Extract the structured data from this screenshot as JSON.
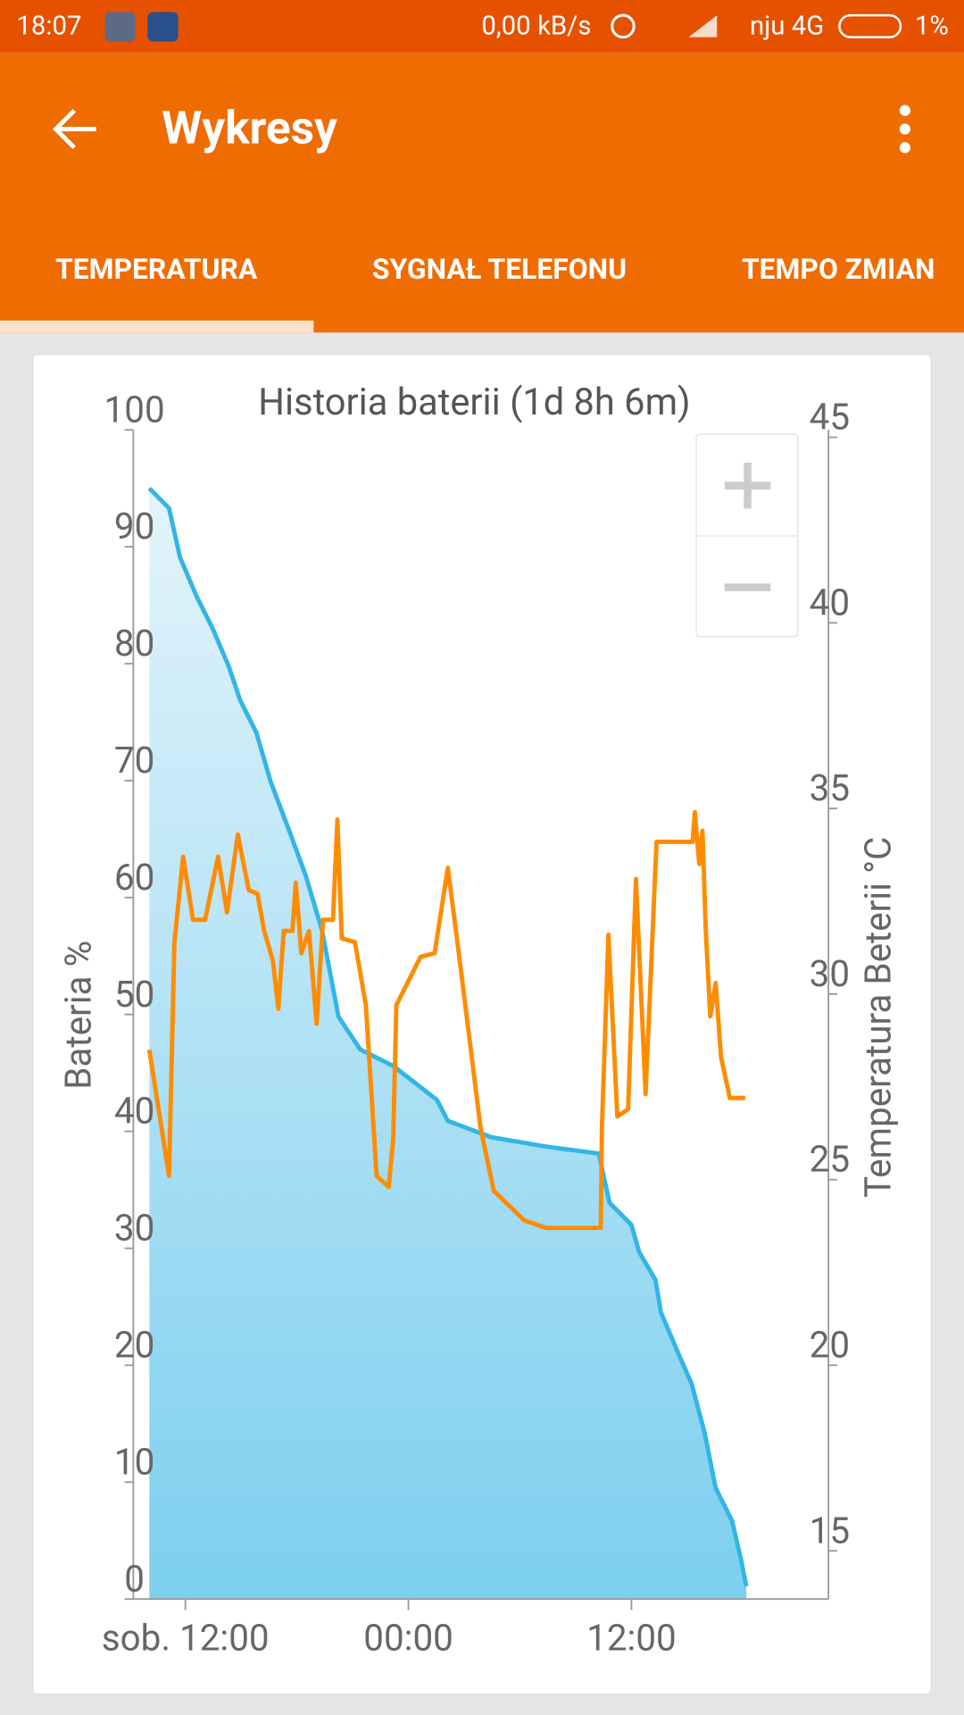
{
  "status_bar": {
    "time": "18:07",
    "speed": "0,00 kB/s",
    "carrier": "nju 4G",
    "battery": "1%"
  },
  "app_bar": {
    "title": "Wykresy"
  },
  "tabs": [
    "TEMPERATURA",
    "SYGNAŁ TELEFONU",
    "TEMPO ZMIAN"
  ],
  "chart_data": {
    "type": "line",
    "title": "Historia baterii (1d 8h 6m)",
    "y_label": "Bateria %",
    "y2_label": "Temperatura Beterii °C",
    "xlim": [
      9.2,
      46.6
    ],
    "xticks": [
      {
        "value": 12,
        "label": "sob. 12:00"
      },
      {
        "value": 24,
        "label": "00:00"
      },
      {
        "value": 36,
        "label": "12:00"
      }
    ],
    "ylim": [
      0,
      100
    ],
    "yticks": [
      0,
      10,
      20,
      30,
      40,
      50,
      60,
      70,
      80,
      90,
      100
    ],
    "y2lim": [
      13.7,
      45.2
    ],
    "y2ticks": [
      15,
      20,
      25,
      30,
      35,
      40,
      45
    ],
    "series": [
      {
        "color": "#33b5e5",
        "fill": true,
        "x": [
          10.06,
          11.12,
          11.71,
          12.59,
          13.47,
          14.35,
          14.94,
          15.82,
          16.59,
          17.59,
          18.47,
          19.35,
          20.24,
          21.41,
          23.18,
          25.53,
          26.12,
          28.47,
          31.41,
          34.24,
          34.82,
          36,
          36.41,
          37.29,
          37.59,
          38.47,
          39.24,
          39.94,
          40.53,
          41.41,
          41.88,
          42.18
        ],
        "values": [
          95.0,
          93.3,
          89.1,
          85.8,
          83.0,
          79.7,
          76.9,
          74.1,
          69.9,
          65.7,
          61.9,
          57.2,
          49.8,
          47.0,
          45.6,
          42.7,
          40.9,
          39.5,
          38.7,
          38.1,
          33.9,
          32.0,
          29.7,
          27.3,
          24.5,
          21.2,
          18.4,
          14.2,
          9.5,
          6.7,
          3.5,
          1.1
        ]
      },
      {
        "color": "#ff8c00",
        "axis": "y2",
        "x": [
          10.06,
          11.12,
          11.41,
          11.88,
          12.41,
          13.06,
          13.76,
          14.24,
          14.82,
          15.41,
          15.88,
          16.24,
          16.71,
          17.0,
          17.29,
          17.76,
          17.94,
          18.24,
          18.65,
          19.06,
          19.41,
          19.94,
          20.18,
          20.41,
          21.12,
          21.71,
          22.29,
          22.94,
          23.18,
          23.35,
          24.65,
          25.41,
          26.12,
          26.71,
          27.88,
          28.59,
          30.24,
          31.41,
          34.35,
          34.41,
          34.76,
          35.24,
          35.82,
          36.24,
          36.76,
          37.35,
          39.29,
          39.41,
          39.65,
          39.82,
          40.0,
          40.24,
          40.53,
          40.82,
          41.29,
          42.12
        ],
        "values": [
          28.5,
          25.1,
          31.4,
          33.7,
          32.0,
          32.0,
          33.7,
          32.2,
          34.3,
          32.8,
          32.7,
          31.7,
          30.9,
          29.6,
          31.7,
          31.7,
          33.0,
          31.1,
          31.7,
          29.2,
          32.0,
          32.0,
          34.7,
          31.5,
          31.4,
          29.7,
          25.1,
          24.8,
          26.1,
          29.7,
          31.0,
          31.1,
          33.4,
          31.1,
          26.4,
          24.7,
          23.9,
          23.7,
          23.7,
          26.4,
          31.6,
          26.7,
          26.9,
          33.1,
          27.3,
          34.1,
          34.1,
          34.9,
          33.5,
          34.4,
          31.7,
          29.4,
          30.3,
          28.3,
          27.2,
          27.2
        ]
      }
    ]
  }
}
